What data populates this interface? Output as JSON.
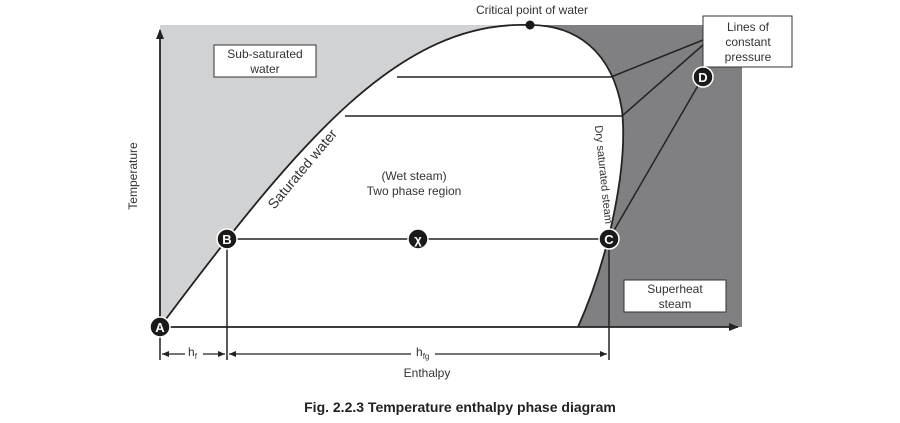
{
  "labels": {
    "critical_point": "Critical point of water",
    "lines_const_pressure": [
      "Lines of",
      "constant",
      "pressure"
    ],
    "sub_saturated": [
      "Sub-saturated",
      "water"
    ],
    "saturated_water": "Saturated water",
    "wet_steam": "(Wet steam)",
    "two_phase": "Two phase region",
    "dry_saturated": "Dry saturated steam",
    "superheat": [
      "Superheat",
      "steam"
    ],
    "y_axis": "Temperature",
    "x_axis": "Enthalpy",
    "hf_main": "h",
    "hf_sub": "f",
    "hfg_main": "h",
    "hfg_sub": "fg"
  },
  "points": {
    "A": "A",
    "B": "B",
    "C": "C",
    "D": "D",
    "X": "χ"
  },
  "caption": "Fig. 2.2.3 Temperature enthalpy phase diagram",
  "colors": {
    "sub_saturated_region": "#d1d2d4",
    "superheat_region": "#808083",
    "line": "#222222",
    "node_fill": "#1a1a1a"
  }
}
